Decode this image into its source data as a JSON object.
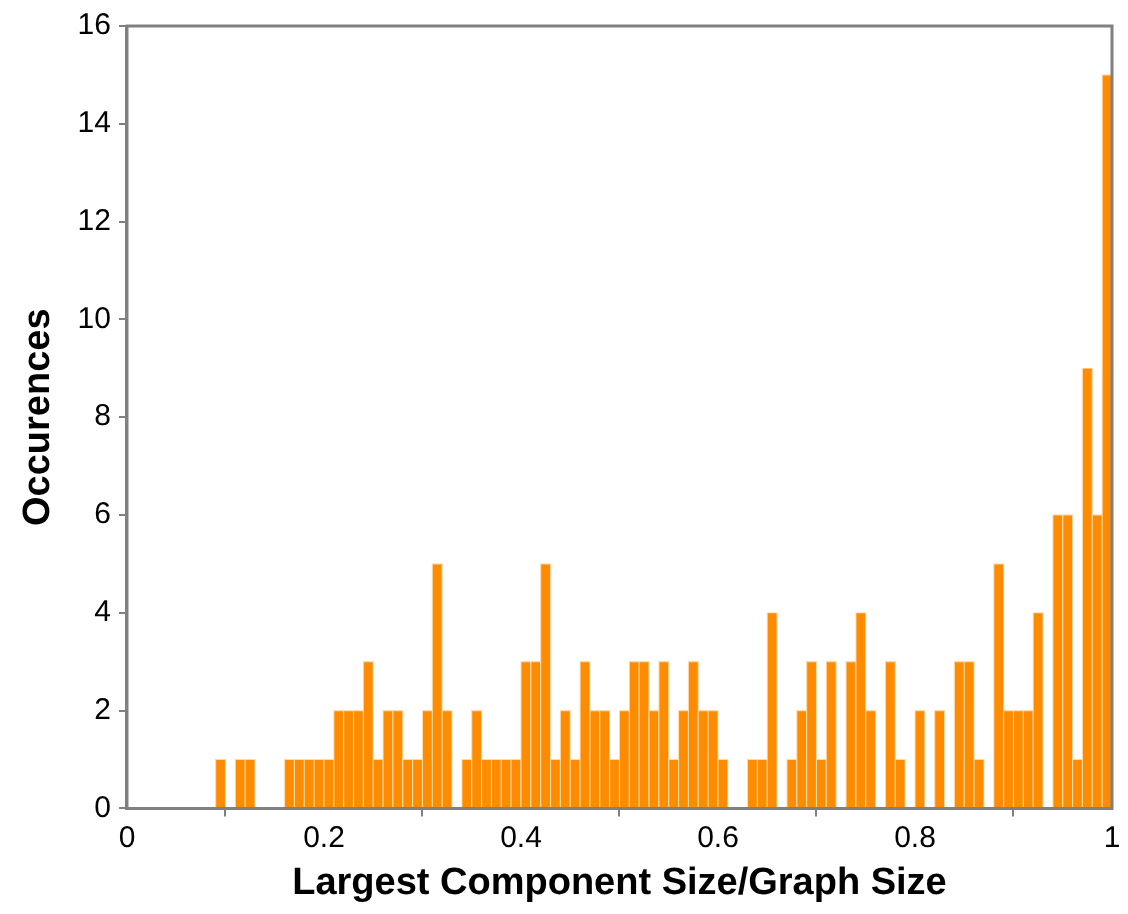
{
  "chart_data": {
    "type": "histogram",
    "xlabel": "Largest Component Size/Graph Size",
    "ylabel": "Occurences",
    "color": "#ff8c00",
    "bins": [
      0,
      0.01,
      0.02,
      0.03,
      0.04,
      0.05,
      0.06,
      0.07,
      0.08,
      0.09,
      0.1,
      0.11,
      0.12,
      0.13,
      0.14,
      0.15,
      0.16,
      0.17,
      0.18,
      0.19,
      0.2,
      0.21,
      0.22,
      0.23,
      0.24,
      0.25,
      0.26,
      0.27,
      0.28,
      0.29,
      0.3,
      0.31,
      0.32,
      0.33,
      0.34,
      0.35,
      0.36,
      0.37,
      0.38,
      0.39,
      0.4,
      0.41,
      0.42,
      0.43,
      0.44,
      0.45,
      0.46,
      0.47,
      0.48,
      0.49,
      0.5,
      0.51,
      0.52,
      0.53,
      0.54,
      0.55,
      0.56,
      0.57,
      0.58,
      0.59,
      0.6,
      0.61,
      0.62,
      0.63,
      0.64,
      0.65,
      0.66,
      0.67,
      0.68,
      0.69,
      0.7,
      0.71,
      0.72,
      0.73,
      0.74,
      0.75,
      0.76,
      0.77,
      0.78,
      0.79,
      0.8,
      0.81,
      0.82,
      0.83,
      0.84,
      0.85,
      0.86,
      0.87,
      0.88,
      0.89,
      0.9,
      0.91,
      0.92,
      0.93,
      0.94,
      0.95,
      0.96,
      0.97,
      0.98,
      0.99,
      1
    ],
    "values": [
      0,
      0,
      0,
      0,
      0,
      0,
      0,
      0,
      0,
      1,
      0,
      1,
      1,
      0,
      0,
      0,
      1,
      1,
      1,
      1,
      1,
      2,
      2,
      2,
      3,
      1,
      2,
      2,
      1,
      1,
      2,
      5,
      2,
      0,
      1,
      2,
      1,
      1,
      1,
      1,
      3,
      3,
      5,
      1,
      2,
      1,
      3,
      2,
      2,
      1,
      2,
      3,
      3,
      2,
      3,
      1,
      2,
      3,
      2,
      2,
      1,
      0,
      0,
      1,
      1,
      4,
      0,
      1,
      2,
      3,
      1,
      3,
      0,
      3,
      4,
      2,
      0,
      3,
      1,
      0,
      2,
      0,
      2,
      0,
      3,
      3,
      1,
      0,
      5,
      2,
      2,
      2,
      4,
      0,
      6,
      6,
      1,
      9,
      6,
      15
    ],
    "xlim": [
      0,
      1
    ],
    "xticks": [
      0,
      0.2,
      0.4,
      0.6,
      0.8,
      1
    ],
    "ylim": [
      0,
      16
    ],
    "yticks": [
      0,
      2,
      4,
      6,
      8,
      10,
      12,
      14,
      16
    ]
  }
}
